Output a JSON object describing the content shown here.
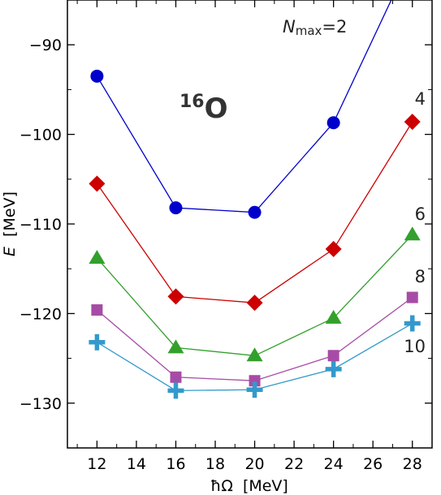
{
  "chart_data": {
    "type": "line",
    "title_sup": "16",
    "title_main": "O",
    "xlabel": "ħΩ  [MeV]",
    "ylabel_italic": "E",
    "ylabel_rest": "  [MeV]",
    "xlim": [
      10.5,
      29.0
    ],
    "ylim": [
      -135.0,
      -85.0
    ],
    "xticks": [
      12,
      14,
      16,
      18,
      20,
      22,
      24,
      26,
      28
    ],
    "yticks": [
      -130,
      -120,
      -110,
      -100,
      -90
    ],
    "series": [
      {
        "label_prefix": "N",
        "label_sub": "max",
        "label_value": "=2",
        "color": "#0000cc",
        "marker": "circle",
        "x": [
          12,
          16,
          20,
          24,
          28
        ],
        "y": [
          -93.5,
          -108.2,
          -108.7,
          -98.7,
          -80.0
        ]
      },
      {
        "label_value": "4",
        "color": "#cc0000",
        "marker": "diamond",
        "x": [
          12,
          16,
          20,
          24,
          28
        ],
        "y": [
          -105.5,
          -118.1,
          -118.8,
          -112.8,
          -98.6
        ]
      },
      {
        "label_value": "6",
        "color": "#33a02c",
        "marker": "triangle",
        "x": [
          12,
          16,
          20,
          24,
          28
        ],
        "y": [
          -113.8,
          -123.8,
          -124.7,
          -120.5,
          -111.2
        ]
      },
      {
        "label_value": "8",
        "color": "#a64ca6",
        "marker": "square",
        "x": [
          12,
          16,
          20,
          24,
          28
        ],
        "y": [
          -119.6,
          -127.1,
          -127.5,
          -124.7,
          -118.2
        ]
      },
      {
        "label_value": "10",
        "color": "#3399cc",
        "marker": "plus",
        "x": [
          12,
          16,
          20,
          24,
          28
        ],
        "y": [
          -123.2,
          -128.6,
          -128.5,
          -126.2,
          -121.1
        ]
      }
    ]
  }
}
